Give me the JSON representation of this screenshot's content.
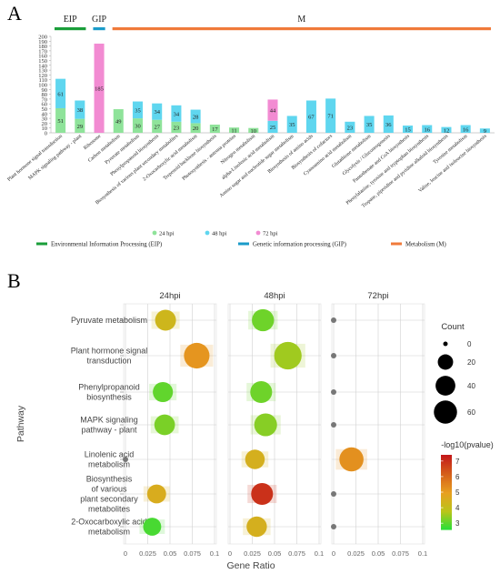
{
  "panel_a": {
    "letter": "A",
    "groups": [
      {
        "label": "EIP",
        "color": "#1a9e3a"
      },
      {
        "label": "GIP",
        "color": "#1a9bc9"
      },
      {
        "label": "M",
        "color": "#f07a3a"
      }
    ],
    "colors": {
      "hpi24": "#8fe39a",
      "hpi48": "#5fd6ef",
      "hpi72": "#f28bd2"
    },
    "legend_series": [
      "24 hpi",
      "48 hpi",
      "72 hpi"
    ],
    "legend_groups": [
      "Environmental Information Processing (EIP)",
      "Genetic information processing (GIP)",
      "Metabolism (M)"
    ]
  },
  "panel_b": {
    "letter": "B",
    "xlabel": "Gene Ratio",
    "ylabel": "Pathway",
    "facets": [
      "24hpi",
      "48hpi",
      "72hpi"
    ],
    "xticks": [
      "0",
      "0.025",
      "0.05",
      "0.075",
      "0.1"
    ],
    "pathway_labels": [
      [
        "Pyruvate metabolism"
      ],
      [
        "Plant hormone signal",
        "transduction"
      ],
      [
        "Phenylpropanoid",
        "biosynthesis"
      ],
      [
        "MAPK signaling",
        "pathway - plant"
      ],
      [
        "Linolenic acid",
        "metabolism"
      ],
      [
        "Biosynthesis",
        "of various",
        "plant secondary",
        "metabolites"
      ],
      [
        "2-Oxocarboxylic acid",
        "metabolism"
      ]
    ],
    "size_legend_title": "Count",
    "size_legend": [
      "0",
      "20",
      "40",
      "60"
    ],
    "color_legend_title": "-log10(pvalue)",
    "color_legend": [
      "3",
      "4",
      "5",
      "6",
      "7"
    ]
  },
  "chart_data": [
    {
      "type": "bar",
      "categories": [
        "Plant hormone signal transduction",
        "MAPK signaling pathway - plant",
        "Ribosome",
        "Carbon metabolism",
        "Pyruvate metabolism",
        "Phenylpropanoid biosynthesis",
        "Biosynthesis of various plant secondary metabolites",
        "2-Oxocarboxylic acid metabolism",
        "Terpenoid backbone biosynthesis",
        "Photosynthesis - antenna proteins",
        "Nitrogen metabolism",
        "alpha-Linolenic acid metabolism",
        "Amino sugar and nucleotide sugar metabolism",
        "Biosynthesis of amino acids",
        "Biosynthesis of cofactors",
        "Cyanoamino acid metabolism",
        "Glutathione metabolism",
        "Glycolysis / Gluconeogenesis",
        "Pantothenate and CoA biosynthesis",
        "Phenylalanine, tyrosine and tryptophan biosynthesis",
        "Tropane, piperidine and pyridine alkaloid biosynthesis",
        "Tyrosine metabolism",
        "Valine, leucine and isoleucine biosynthesis"
      ],
      "series": [
        {
          "name": "24 hpi",
          "values": [
            51,
            29,
            0,
            49,
            30,
            27,
            23,
            20,
            17,
            11,
            10,
            0,
            0,
            0,
            0,
            0,
            0,
            0,
            0,
            0,
            0,
            0,
            0
          ]
        },
        {
          "name": "48 hpi",
          "values": [
            61,
            38,
            0,
            0,
            35,
            34,
            34,
            28,
            0,
            0,
            0,
            25,
            35,
            67,
            71,
            23,
            35,
            36,
            15,
            16,
            12,
            16,
            9
          ]
        },
        {
          "name": "72 hpi",
          "values": [
            0,
            0,
            185,
            0,
            0,
            0,
            0,
            0,
            0,
            0,
            0,
            44,
            0,
            0,
            0,
            0,
            0,
            0,
            0,
            0,
            0,
            0,
            0
          ]
        }
      ],
      "stacked": true,
      "ylim": [
        0,
        200
      ],
      "yticks": [
        0,
        10,
        20,
        30,
        40,
        50,
        60,
        70,
        80,
        90,
        100,
        110,
        120,
        130,
        140,
        150,
        160,
        170,
        180,
        190,
        200
      ],
      "group_spans": [
        {
          "label": "EIP",
          "from": 0,
          "to": 1
        },
        {
          "label": "GIP",
          "from": 2,
          "to": 2
        },
        {
          "label": "M",
          "from": 3,
          "to": 22
        }
      ],
      "legend": "bottom"
    },
    {
      "type": "scatter",
      "facets": [
        "24hpi",
        "48hpi",
        "72hpi"
      ],
      "pathways": [
        "Pyruvate metabolism",
        "Plant hormone signal transduction",
        "Phenylpropanoid biosynthesis",
        "MAPK signaling pathway - plant",
        "Linolenic acid metabolism",
        "Biosynthesis of various plant secondary metabolites",
        "2-Oxocarboxylic acid metabolism"
      ],
      "xlim": [
        0,
        0.1
      ],
      "points": [
        {
          "facet": "24hpi",
          "pathway": "Pyruvate metabolism",
          "x": 0.045,
          "count": 30,
          "neglog10p": 4.3
        },
        {
          "facet": "24hpi",
          "pathway": "Plant hormone signal transduction",
          "x": 0.08,
          "count": 51,
          "neglog10p": 5.2
        },
        {
          "facet": "24hpi",
          "pathway": "Phenylpropanoid biosynthesis",
          "x": 0.042,
          "count": 27,
          "neglog10p": 3.1
        },
        {
          "facet": "24hpi",
          "pathway": "MAPK signaling pathway - plant",
          "x": 0.044,
          "count": 29,
          "neglog10p": 3.3
        },
        {
          "facet": "24hpi",
          "pathway": "Linolenic acid metabolism",
          "x": 0,
          "count": 0,
          "neglog10p": null
        },
        {
          "facet": "24hpi",
          "pathway": "Biosynthesis of various plant secondary metabolites",
          "x": 0.035,
          "count": 23,
          "neglog10p": 4.6
        },
        {
          "facet": "24hpi",
          "pathway": "2-Oxocarboxylic acid metabolism",
          "x": 0.03,
          "count": 20,
          "neglog10p": 2.9
        },
        {
          "facet": "48hpi",
          "pathway": "Pyruvate metabolism",
          "x": 0.037,
          "count": 35,
          "neglog10p": 3.2
        },
        {
          "facet": "48hpi",
          "pathway": "Plant hormone signal transduction",
          "x": 0.065,
          "count": 61,
          "neglog10p": 3.6
        },
        {
          "facet": "48hpi",
          "pathway": "Phenylpropanoid biosynthesis",
          "x": 0.035,
          "count": 34,
          "neglog10p": 3.2
        },
        {
          "facet": "48hpi",
          "pathway": "MAPK signaling pathway - plant",
          "x": 0.04,
          "count": 38,
          "neglog10p": 3.4
        },
        {
          "facet": "48hpi",
          "pathway": "Linolenic acid metabolism",
          "x": 0.028,
          "count": 25,
          "neglog10p": 4.5
        },
        {
          "facet": "48hpi",
          "pathway": "Biosynthesis of various plant secondary metabolites",
          "x": 0.036,
          "count": 34,
          "neglog10p": 7.0
        },
        {
          "facet": "48hpi",
          "pathway": "2-Oxocarboxylic acid metabolism",
          "x": 0.03,
          "count": 28,
          "neglog10p": 4.5
        },
        {
          "facet": "72hpi",
          "pathway": "Pyruvate metabolism",
          "x": 0,
          "count": 0,
          "neglog10p": null
        },
        {
          "facet": "72hpi",
          "pathway": "Plant hormone signal transduction",
          "x": 0,
          "count": 0,
          "neglog10p": null
        },
        {
          "facet": "72hpi",
          "pathway": "Phenylpropanoid biosynthesis",
          "x": 0,
          "count": 0,
          "neglog10p": null
        },
        {
          "facet": "72hpi",
          "pathway": "MAPK signaling pathway - plant",
          "x": 0,
          "count": 0,
          "neglog10p": null
        },
        {
          "facet": "72hpi",
          "pathway": "Linolenic acid metabolism",
          "x": 0.02,
          "count": 44,
          "neglog10p": 5.3
        },
        {
          "facet": "72hpi",
          "pathway": "Biosynthesis of various plant secondary metabolites",
          "x": 0,
          "count": 0,
          "neglog10p": null
        },
        {
          "facet": "72hpi",
          "pathway": "2-Oxocarboxylic acid metabolism",
          "x": 0,
          "count": 0,
          "neglog10p": null
        }
      ],
      "size_legend": [
        0,
        20,
        40,
        60
      ],
      "color_range": [
        2.6,
        7.4
      ],
      "color_scale": [
        "#22e03a",
        "#b9c51a",
        "#e8a020",
        "#d5601a",
        "#c41a1a"
      ],
      "legend": "right",
      "grid": true
    }
  ]
}
